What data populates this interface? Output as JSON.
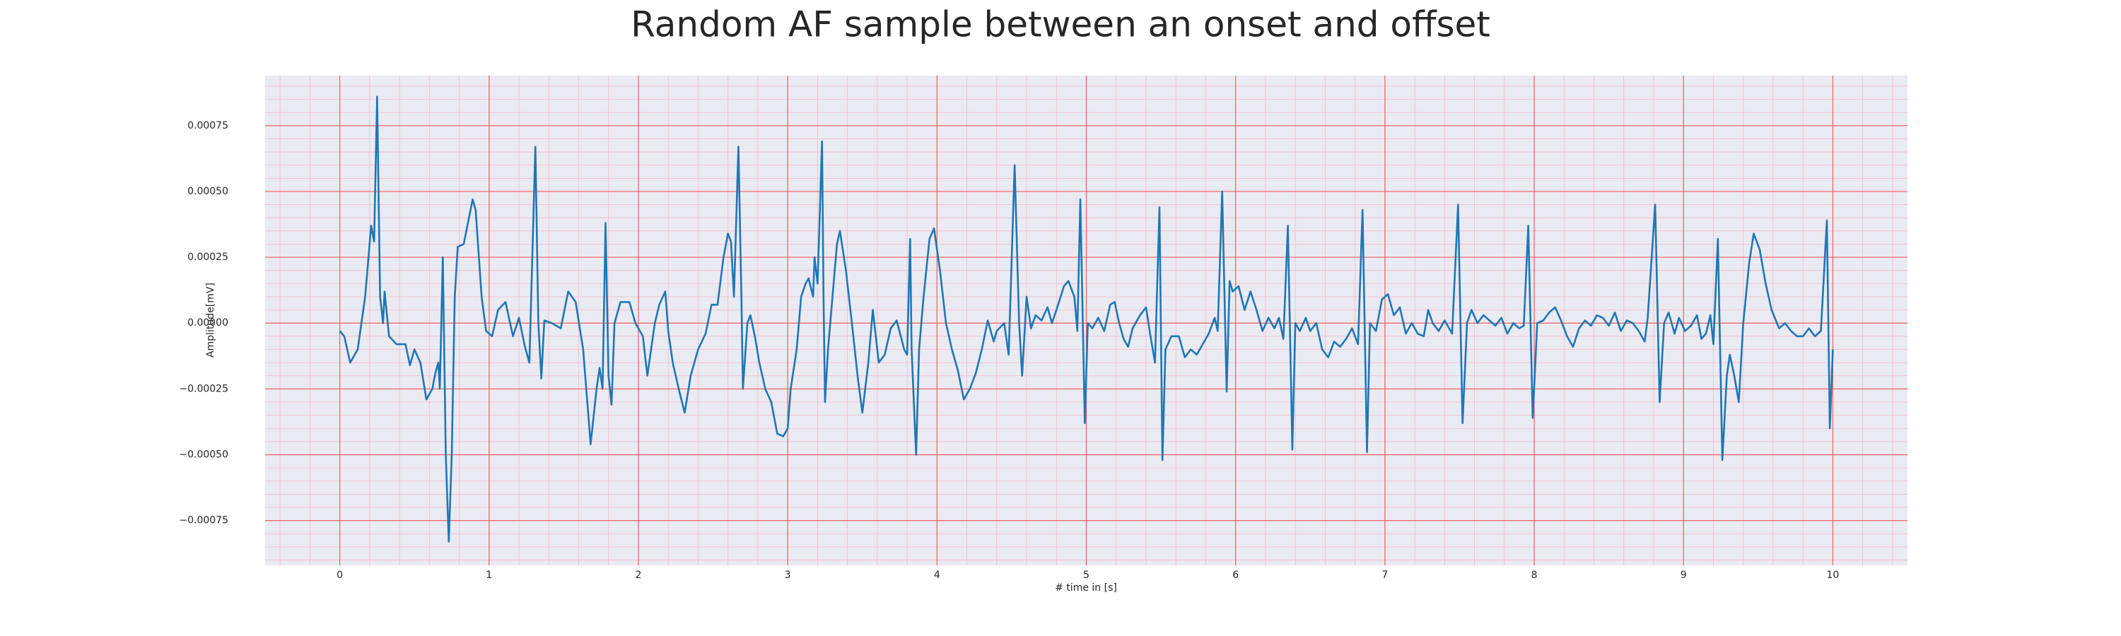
{
  "chart_data": {
    "type": "line",
    "title": "Random AF sample between an onset and offset",
    "xlabel": "# time in [s]",
    "ylabel": "Amplitude[mV]",
    "color": "#1f77b4",
    "grid": true,
    "xlim": [
      -0.5,
      10.5
    ],
    "xticks": [
      0,
      1,
      2,
      3,
      4,
      5,
      6,
      7,
      8,
      9,
      10
    ],
    "ylim": [
      -0.00092,
      0.00094
    ],
    "yticks": [
      {
        "value": -0.00075,
        "label": "−0.00075"
      },
      {
        "value": -0.0005,
        "label": "−0.00050"
      },
      {
        "value": -0.00025,
        "label": "−0.00025"
      },
      {
        "value": 0,
        "label": "0.00000"
      },
      {
        "value": 0.00025,
        "label": "0.00025"
      },
      {
        "value": 0.0005,
        "label": "0.00050"
      },
      0.00075
    ],
    "x": [
      0.0,
      0.03,
      0.07,
      0.12,
      0.17,
      0.21,
      0.23,
      0.25,
      0.27,
      0.29,
      0.3,
      0.33,
      0.38,
      0.44,
      0.47,
      0.5,
      0.54,
      0.58,
      0.62,
      0.64,
      0.66,
      0.67,
      0.69,
      0.71,
      0.73,
      0.75,
      0.77,
      0.79,
      0.83,
      0.89,
      0.91,
      0.95,
      0.98,
      1.02,
      1.06,
      1.11,
      1.16,
      1.2,
      1.24,
      1.27,
      1.31,
      1.33,
      1.35,
      1.37,
      1.42,
      1.48,
      1.53,
      1.58,
      1.63,
      1.68,
      1.72,
      1.74,
      1.76,
      1.78,
      1.8,
      1.82,
      1.84,
      1.88,
      1.94,
      1.98,
      2.03,
      2.06,
      2.11,
      2.14,
      2.18,
      2.2,
      2.23,
      2.27,
      2.31,
      2.35,
      2.4,
      2.45,
      2.49,
      2.53,
      2.57,
      2.6,
      2.62,
      2.64,
      2.67,
      2.69,
      2.7,
      2.73,
      2.75,
      2.78,
      2.81,
      2.85,
      2.89,
      2.93,
      2.97,
      3.0,
      3.02,
      3.06,
      3.09,
      3.12,
      3.14,
      3.17,
      3.18,
      3.2,
      3.23,
      3.24,
      3.25,
      3.27,
      3.3,
      3.33,
      3.35,
      3.39,
      3.43,
      3.47,
      3.5,
      3.54,
      3.57,
      3.61,
      3.65,
      3.69,
      3.73,
      3.78,
      3.8,
      3.82,
      3.83,
      3.86,
      3.88,
      3.91,
      3.95,
      3.98,
      4.02,
      4.06,
      4.1,
      4.14,
      4.18,
      4.22,
      4.26,
      4.3,
      4.34,
      4.38,
      4.4,
      4.45,
      4.48,
      4.52,
      4.55,
      4.57,
      4.6,
      4.63,
      4.66,
      4.7,
      4.74,
      4.77,
      4.8,
      4.85,
      4.88,
      4.92,
      4.94,
      4.96,
      4.99,
      5.01,
      5.04,
      5.08,
      5.12,
      5.16,
      5.19,
      5.22,
      5.25,
      5.28,
      5.31,
      5.36,
      5.4,
      5.43,
      5.46,
      5.49,
      5.51,
      5.53,
      5.57,
      5.62,
      5.66,
      5.7,
      5.74,
      5.78,
      5.82,
      5.86,
      5.88,
      5.91,
      5.94,
      5.96,
      5.98,
      6.02,
      6.06,
      6.1,
      6.14,
      6.18,
      6.22,
      6.26,
      6.29,
      6.32,
      6.35,
      6.38,
      6.4,
      6.43,
      6.47,
      6.5,
      6.54,
      6.58,
      6.62,
      6.66,
      6.7,
      6.74,
      6.78,
      6.82,
      6.85,
      6.88,
      6.9,
      6.94,
      6.98,
      7.02,
      7.06,
      7.1,
      7.14,
      7.18,
      7.22,
      7.26,
      7.29,
      7.32,
      7.36,
      7.4,
      7.45,
      7.49,
      7.52,
      7.55,
      7.58,
      7.62,
      7.66,
      7.7,
      7.74,
      7.78,
      7.82,
      7.86,
      7.9,
      7.93,
      7.96,
      7.99,
      8.02,
      8.06,
      8.1,
      8.14,
      8.18,
      8.22,
      8.26,
      8.3,
      8.34,
      8.38,
      8.42,
      8.46,
      8.5,
      8.54,
      8.58,
      8.62,
      8.66,
      8.7,
      8.74,
      8.76,
      8.81,
      8.84,
      8.87,
      8.9,
      8.94,
      8.97,
      9.01,
      9.05,
      9.09,
      9.12,
      9.15,
      9.18,
      9.2,
      9.23,
      9.26,
      9.29,
      9.31,
      9.34,
      9.37,
      9.4,
      9.44,
      9.47,
      9.51,
      9.55,
      9.59,
      9.64,
      9.68,
      9.72,
      9.76,
      9.8,
      9.84,
      9.88,
      9.92,
      9.96,
      9.98,
      10.0
    ],
    "values": [
      -3e-05,
      -5e-05,
      -0.00015,
      -0.0001,
      0.0001,
      0.00037,
      0.00031,
      0.00086,
      0.0001,
      0,
      0.00012,
      -5e-05,
      -8e-05,
      -8e-05,
      -0.00016,
      -0.0001,
      -0.00015,
      -0.00029,
      -0.00025,
      -0.00019,
      -0.00015,
      -0.00025,
      0.00025,
      -0.0005,
      -0.00083,
      -0.0005,
      0.0001,
      0.00029,
      0.0003,
      0.00047,
      0.00043,
      0.0001,
      -3e-05,
      -5e-05,
      5e-05,
      8e-05,
      -5e-05,
      2e-05,
      -9e-05,
      -0.00015,
      0.00067,
      0,
      -0.00021,
      1e-05,
      0,
      -2e-05,
      0.00012,
      8e-05,
      -0.0001,
      -0.00046,
      -0.00025,
      -0.00017,
      -0.00025,
      0.00038,
      -0.0002,
      -0.00031,
      0,
      8e-05,
      8e-05,
      0,
      -5e-05,
      -0.0002,
      0,
      7e-05,
      0.00012,
      -3e-05,
      -0.00015,
      -0.00025,
      -0.00034,
      -0.0002,
      -0.0001,
      -4e-05,
      7e-05,
      7e-05,
      0.00025,
      0.00034,
      0.00031,
      0.0001,
      0.00067,
      0.0001,
      -0.00025,
      0,
      3e-05,
      -5e-05,
      -0.00015,
      -0.00025,
      -0.0003,
      -0.00042,
      -0.00043,
      -0.0004,
      -0.00025,
      -0.0001,
      0.0001,
      0.00015,
      0.00017,
      0.0001,
      0.00025,
      0.00015,
      0.00069,
      0.0001,
      -0.0003,
      -0.0001,
      0.0001,
      0.0003,
      0.00035,
      0.0002,
      0,
      -0.00021,
      -0.00034,
      -0.00015,
      5e-05,
      -0.00015,
      -0.00012,
      -2e-05,
      1e-05,
      -0.0001,
      -0.00012,
      0.00032,
      -0.0001,
      -0.0005,
      -0.0001,
      0.0001,
      0.00032,
      0.00036,
      0.0002,
      0,
      -0.0001,
      -0.00018,
      -0.00029,
      -0.00025,
      -0.00019,
      -0.0001,
      1e-05,
      -7e-05,
      -3e-05,
      0,
      -0.00012,
      0.0006,
      0,
      -0.0002,
      0.0001,
      -2e-05,
      3e-05,
      1e-05,
      6e-05,
      0,
      5e-05,
      0.00014,
      0.00016,
      0.0001,
      -3e-05,
      0.00047,
      -0.00038,
      0,
      -2e-05,
      2e-05,
      -3e-05,
      7e-05,
      8e-05,
      0,
      -6e-05,
      -9e-05,
      -2e-05,
      3e-05,
      6e-05,
      -5e-05,
      -0.00015,
      0.00044,
      -0.00052,
      -0.0001,
      -5e-05,
      -5e-05,
      -0.00013,
      -0.0001,
      -0.00012,
      -8e-05,
      -4e-05,
      2e-05,
      -3e-05,
      0.0005,
      -0.00026,
      0.00016,
      0.00012,
      0.00014,
      5e-05,
      0.00012,
      5e-05,
      -3e-05,
      2e-05,
      -2e-05,
      2e-05,
      -6e-05,
      0.00037,
      -0.00048,
      0,
      -3e-05,
      2e-05,
      -3e-05,
      0,
      -0.0001,
      -0.00013,
      -7e-05,
      -9e-05,
      -6e-05,
      -2e-05,
      -8e-05,
      0.00043,
      -0.00049,
      0,
      -3e-05,
      9e-05,
      0.00011,
      3e-05,
      6e-05,
      -4e-05,
      0,
      -4e-05,
      -5e-05,
      5e-05,
      0,
      -3e-05,
      1e-05,
      -4e-05,
      0.00045,
      -0.00038,
      0,
      5e-05,
      0,
      3e-05,
      1e-05,
      -1e-05,
      2e-05,
      -4e-05,
      0,
      -2e-05,
      -1e-05,
      0.00037,
      -0.00036,
      0,
      1e-05,
      4e-05,
      6e-05,
      1e-05,
      -5e-05,
      -9e-05,
      -2e-05,
      1e-05,
      -1e-05,
      3e-05,
      2e-05,
      -1e-05,
      4e-05,
      -3e-05,
      1e-05,
      0,
      -3e-05,
      -7e-05,
      2e-05,
      0.00045,
      -0.0003,
      0,
      4e-05,
      -4e-05,
      2e-05,
      -3e-05,
      -1e-05,
      3e-05,
      -6e-05,
      -4e-05,
      3e-05,
      -8e-05,
      0.00032,
      -0.00052,
      -0.0002,
      -0.00012,
      -0.0002,
      -0.0003,
      0,
      0.00023,
      0.00034,
      0.00028,
      0.00015,
      5e-05,
      -2e-05,
      0,
      -3e-05,
      -5e-05,
      -5e-05,
      -2e-05,
      -5e-05,
      -3e-05,
      0.00039,
      -0.0004,
      -0.0001
    ]
  }
}
